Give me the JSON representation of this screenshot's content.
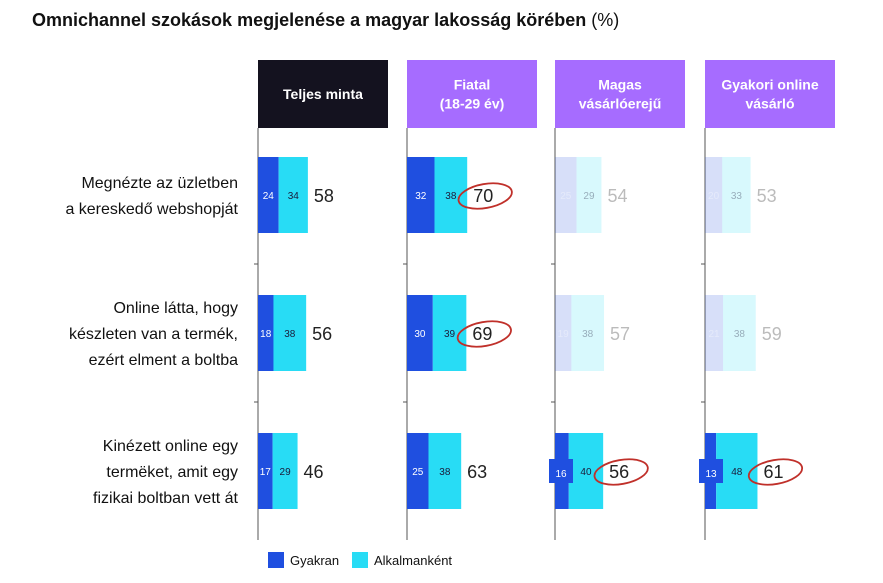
{
  "title": {
    "main": "Omnichannel szokások megjelenése a magyar lakosság körében",
    "unit": "(%)"
  },
  "colors": {
    "gyakran": "#1f4fe0",
    "alkalmankent": "#28dcf5",
    "header_dark": "#14121f",
    "header_purple": "#a66cff",
    "highlight_circle": "#c0302a",
    "axis": "#555555"
  },
  "chart_data": {
    "type": "bar",
    "orientation": "horizontal",
    "stacked": true,
    "panels": [
      {
        "name": "Teljes minta",
        "lines": [
          "Teljes minta"
        ],
        "header_style": "dark"
      },
      {
        "name": "Fiatal (18-29 év)",
        "lines": [
          "Fiatal",
          "(18-29 év)"
        ],
        "header_style": "purple"
      },
      {
        "name": "Magas vásárlóerejű",
        "lines": [
          "Magas",
          "vásárlóerejű"
        ],
        "header_style": "purple"
      },
      {
        "name": "Gyakori online vásárló",
        "lines": [
          "Gyakori online",
          "vásárló"
        ],
        "header_style": "purple"
      }
    ],
    "categories": [
      [
        "Megnézte az üzletben",
        "a kereskedő webshopját"
      ],
      [
        "Online látta, hogy",
        "készleten van a termék,",
        "ezért elment a boltba"
      ],
      [
        "Kinézett online egy",
        "termëket, amit  egy",
        "fizikai boltban vett át"
      ]
    ],
    "series": [
      {
        "name": "Gyakran",
        "values": [
          [
            24,
            32,
            25,
            20
          ],
          [
            18,
            30,
            19,
            21
          ],
          [
            17,
            25,
            16,
            13
          ]
        ]
      },
      {
        "name": "Alkalmanként",
        "values": [
          [
            34,
            38,
            29,
            33
          ],
          [
            38,
            39,
            38,
            38
          ],
          [
            29,
            38,
            40,
            48
          ]
        ]
      }
    ],
    "totals": [
      [
        58,
        70,
        54,
        53
      ],
      [
        56,
        69,
        57,
        59
      ],
      [
        46,
        63,
        56,
        61
      ]
    ],
    "faded": [
      [
        false,
        false,
        true,
        true
      ],
      [
        false,
        false,
        true,
        true
      ],
      [
        false,
        false,
        false,
        false
      ]
    ],
    "highlighted": [
      [
        false,
        true,
        false,
        false
      ],
      [
        false,
        true,
        false,
        false
      ],
      [
        false,
        false,
        true,
        true
      ]
    ],
    "emphasized_gyakran": [
      [
        false,
        false,
        false,
        false
      ],
      [
        false,
        false,
        false,
        false
      ],
      [
        false,
        false,
        true,
        true
      ]
    ],
    "legend": {
      "position": "bottom-left",
      "items": [
        "Gyakran",
        "Alkalmanként"
      ]
    }
  }
}
